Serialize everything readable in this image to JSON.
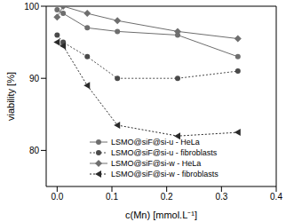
{
  "chart_data": {
    "type": "line",
    "x_label": "c(Mn) [mmol.L⁻¹]",
    "y_label": "viability [%]",
    "xlim": [
      -0.02,
      0.4
    ],
    "xticks": [
      {
        "value": 0,
        "label": "0.0"
      },
      {
        "value": 0.1,
        "label": "0.1"
      },
      {
        "value": 0.2,
        "label": "0.2"
      },
      {
        "value": 0.3,
        "label": "0.3"
      },
      {
        "value": 0.4,
        "label": "0.4"
      }
    ],
    "ylim": [
      75,
      100
    ],
    "yticks": [
      80,
      90,
      100
    ],
    "legend": "lower left",
    "series": [
      {
        "name": "LSMO@siF@si-u - HeLa",
        "color": "#6e6e6e",
        "marker": "circle",
        "line_style": "solid",
        "x": [
          0,
          0.011,
          0.055,
          0.11,
          0.22,
          0.33
        ],
        "values": [
          99.5,
          99,
          97,
          96.5,
          96,
          93
        ]
      },
      {
        "name": "LSMO@siF@si-u - fibroblasts",
        "color": "#4a4a4a",
        "marker": "circle",
        "line_style": "dotted",
        "x": [
          0,
          0.011,
          0.055,
          0.11,
          0.22,
          0.33
        ],
        "values": [
          96,
          95,
          93,
          90,
          90,
          91
        ]
      },
      {
        "name": "LSMO@siF@si-w - HeLa",
        "color": "#6e6e6e",
        "marker": "diamond",
        "line_style": "solid",
        "x": [
          0,
          0.011,
          0.055,
          0.11,
          0.22,
          0.33
        ],
        "values": [
          98.5,
          100,
          99,
          98,
          96.5,
          95.5
        ]
      },
      {
        "name": "LSMO@siF@si-w - fibroblasts",
        "color": "#2a2a2a",
        "marker": "triangle-left",
        "line_style": "dotted",
        "x": [
          0,
          0.011,
          0.055,
          0.11,
          0.22,
          0.33
        ],
        "values": [
          95,
          94.5,
          89,
          83.5,
          82,
          82.5
        ]
      }
    ]
  }
}
